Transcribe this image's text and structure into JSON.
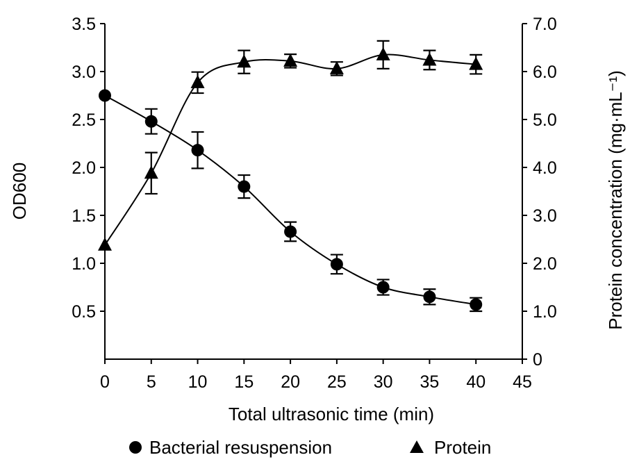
{
  "chart_data": {
    "type": "line",
    "title": "",
    "xlabel": "Total ultrasonic time (min)",
    "ylabel": "OD600",
    "y2label": "Protein concentration (mg·mL⁻¹)",
    "xlim": [
      0,
      45
    ],
    "ylim": [
      0,
      3.5
    ],
    "y2lim": [
      0,
      7.0
    ],
    "x_ticks": [
      "0",
      "5",
      "10",
      "15",
      "20",
      "25",
      "30",
      "35",
      "40",
      "45"
    ],
    "y_ticks": [
      "0.5",
      "1.0",
      "1.5",
      "2.0",
      "2.5",
      "3.0",
      "3.5"
    ],
    "y2_ticks": [
      "0",
      "1.0",
      "2.0",
      "3.0",
      "4.0",
      "5.0",
      "6.0",
      "7.0"
    ],
    "grid": false,
    "legend_position": "bottom",
    "series": [
      {
        "name": "Bacterial resuspension",
        "axis": "left",
        "marker": "circle",
        "x": [
          0,
          5,
          10,
          15,
          20,
          25,
          30,
          35,
          40
        ],
        "values": [
          2.75,
          2.48,
          2.18,
          1.8,
          1.33,
          0.99,
          0.75,
          0.65,
          0.57
        ],
        "error": [
          0.0,
          0.13,
          0.19,
          0.12,
          0.1,
          0.1,
          0.08,
          0.08,
          0.07
        ]
      },
      {
        "name": "Protein",
        "axis": "right",
        "marker": "triangle",
        "x": [
          0,
          5,
          10,
          15,
          20,
          25,
          30,
          35,
          40
        ],
        "values": [
          2.38,
          3.88,
          5.77,
          6.2,
          6.22,
          6.06,
          6.35,
          6.24,
          6.15
        ],
        "error": [
          0.0,
          0.43,
          0.22,
          0.24,
          0.14,
          0.14,
          0.29,
          0.2,
          0.2
        ]
      }
    ]
  }
}
